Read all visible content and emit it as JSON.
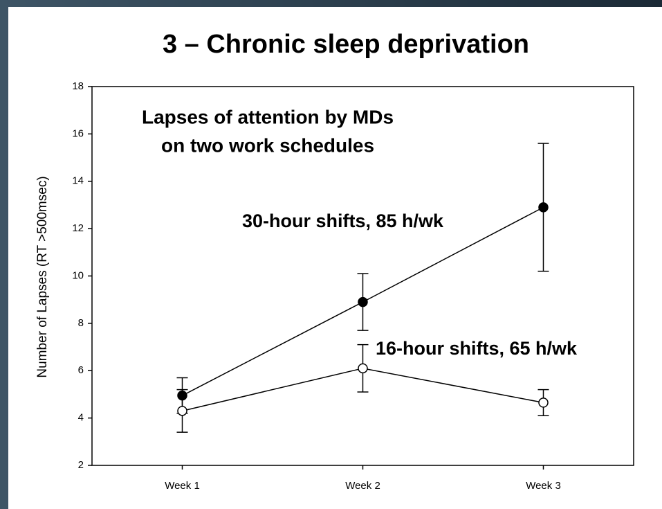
{
  "chart_data": {
    "type": "line",
    "title": "3 – Chronic sleep deprivation",
    "annotations": [
      "Lapses of attention by MDs",
      "on two work schedules"
    ],
    "y_label": "Number of Lapses (RT >500msec)",
    "categories": [
      "Week 1",
      "Week 2",
      "Week 3"
    ],
    "line_color": "#000000",
    "series": [
      {
        "name": "30-hour shifts, 85 h/wk",
        "color": "#000000",
        "values": [
          4.95,
          8.9,
          12.9
        ],
        "errors": [
          0.75,
          1.2,
          2.7
        ]
      },
      {
        "name": "16-hour shifts, 65 h/wk",
        "color": "#ffffff",
        "values": [
          4.3,
          6.1,
          4.65
        ],
        "errors": [
          0.9,
          1.0,
          0.55
        ]
      }
    ],
    "ylim": [
      2,
      18
    ],
    "yticks": [
      2,
      4,
      6,
      8,
      10,
      12,
      14,
      16,
      18
    ],
    "grid": false
  }
}
